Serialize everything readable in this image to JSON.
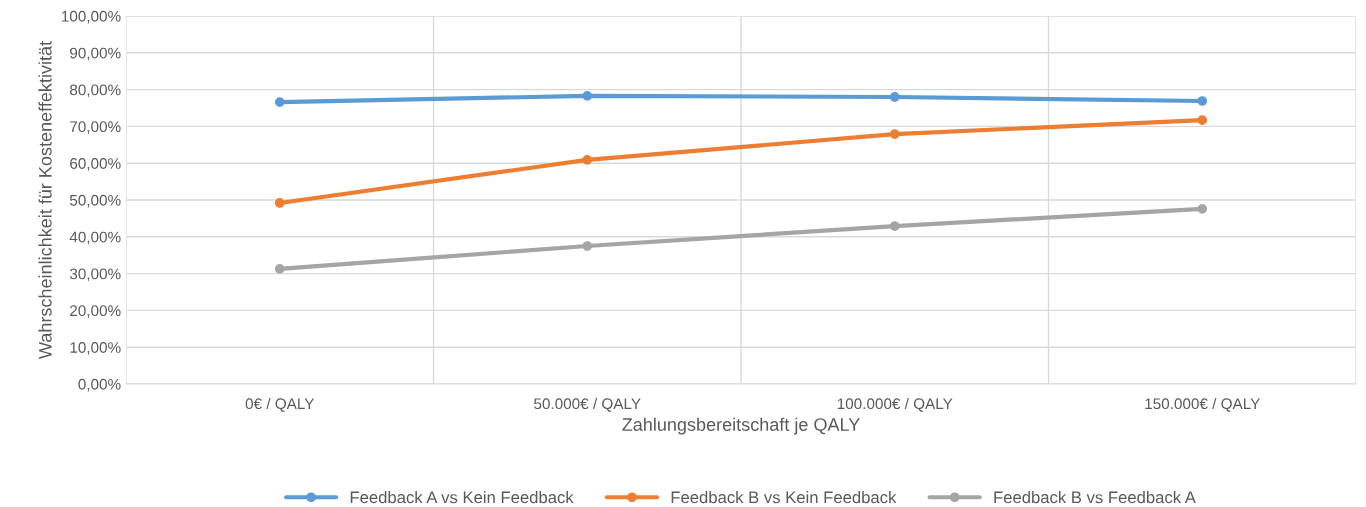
{
  "chart_data": {
    "type": "line",
    "xlabel": "Zahlungsbereitschaft je QALY",
    "ylabel": "Wahrscheinlichkeit für Kosteneffektivität",
    "categories": [
      "0€ / QALY",
      "50.000€ / QALY",
      "100.000€ / QALY",
      "150.000€ / QALY"
    ],
    "series": [
      {
        "name": "Feedback A vs Kein Feedback",
        "color": "#5b9bd5",
        "values": [
          76.6,
          78.3,
          78.0,
          76.9
        ]
      },
      {
        "name": "Feedback B vs Kein Feedback",
        "color": "#ed7d31",
        "values": [
          49.2,
          60.9,
          67.9,
          71.7
        ]
      },
      {
        "name": "Feedback B vs Feedback A",
        "color": "#a5a5a5",
        "values": [
          31.3,
          37.5,
          42.9,
          47.6
        ]
      }
    ],
    "ylim": [
      0,
      100
    ],
    "yticks": [
      {
        "value": 0,
        "label": "0,00%"
      },
      {
        "value": 10,
        "label": "10,00%"
      },
      {
        "value": 20,
        "label": "20,00%"
      },
      {
        "value": 30,
        "label": "30,00%"
      },
      {
        "value": 40,
        "label": "40,00%"
      },
      {
        "value": 50,
        "label": "50,00%"
      },
      {
        "value": 60,
        "label": "60,00%"
      },
      {
        "value": 70,
        "label": "70,00%"
      },
      {
        "value": 80,
        "label": "80,00%"
      },
      {
        "value": 90,
        "label": "90,00%"
      },
      {
        "value": 100,
        "label": "100,00%"
      }
    ],
    "grid": true,
    "legend": "bottom",
    "marker": "circle",
    "line_style": "solid"
  }
}
